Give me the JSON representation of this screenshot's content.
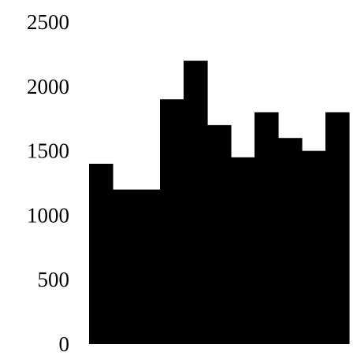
{
  "chart_data": {
    "type": "bar",
    "title": "",
    "xlabel": "",
    "ylabel": "",
    "ylim": [
      0,
      2500
    ],
    "yticks": [
      "0",
      "500",
      "1000",
      "1500",
      "2000",
      "2500"
    ],
    "grid": false,
    "legend": "none",
    "bar_color": "#000000",
    "values": [
      1400,
      1200,
      1200,
      1900,
      2200,
      1700,
      1450,
      1800,
      1600,
      1500,
      1800
    ]
  }
}
